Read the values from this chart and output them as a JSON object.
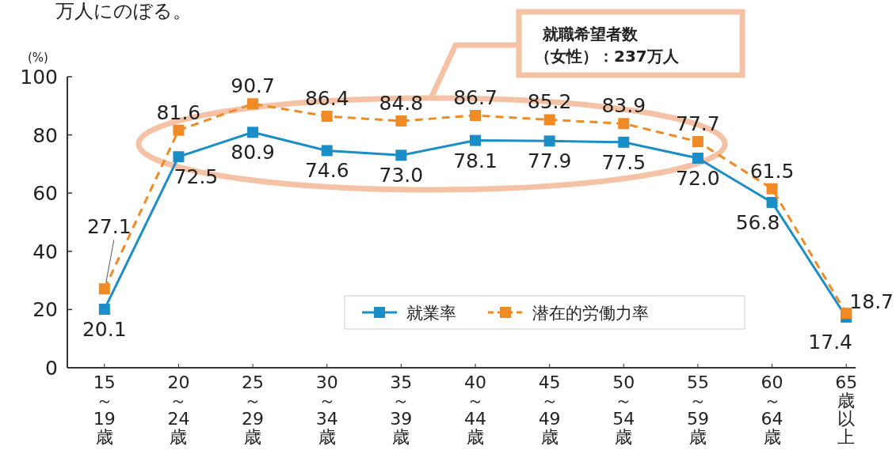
{
  "chart_data": {
    "type": "line",
    "annotations": [
      "万人にのぼる。",
      "就職希望者数",
      "（女性）：237万人"
    ],
    "ylabel": "(%)",
    "categories": [
      "15～19歳",
      "20～24歳",
      "25～29歳",
      "30～34歳",
      "35～39歳",
      "40～44歳",
      "45～49歳",
      "50～54歳",
      "55～59歳",
      "60～64歳",
      "65歳以上"
    ],
    "series": [
      {
        "name": "就業率",
        "color": "#1b8ec8",
        "line_style": "solid",
        "values": [
          20.1,
          72.5,
          80.9,
          74.6,
          73.0,
          78.1,
          77.9,
          77.5,
          72.0,
          56.8,
          17.4
        ],
        "value_labels": [
          "20.1",
          "72.5",
          "80.9",
          "74.6",
          "73.0",
          "78.1",
          "77.9",
          "77.5",
          "72.0",
          "56.8",
          "17.4"
        ]
      },
      {
        "name": "潜在的労働力率",
        "color": "#f08a24",
        "line_style": "dashed",
        "values": [
          27.1,
          81.6,
          90.7,
          86.4,
          84.8,
          86.7,
          85.2,
          83.9,
          77.7,
          61.5,
          18.7
        ],
        "value_labels": [
          "27.1",
          "81.6",
          "90.7",
          "86.4",
          "84.8",
          "86.7",
          "85.2",
          "83.9",
          "77.7",
          "61.5",
          "18.7"
        ]
      }
    ],
    "marker": "square",
    "ylim": [
      0,
      100
    ],
    "yticks": [
      0,
      20,
      40,
      60,
      80,
      100
    ],
    "grid": false,
    "legend": "bottom right"
  }
}
